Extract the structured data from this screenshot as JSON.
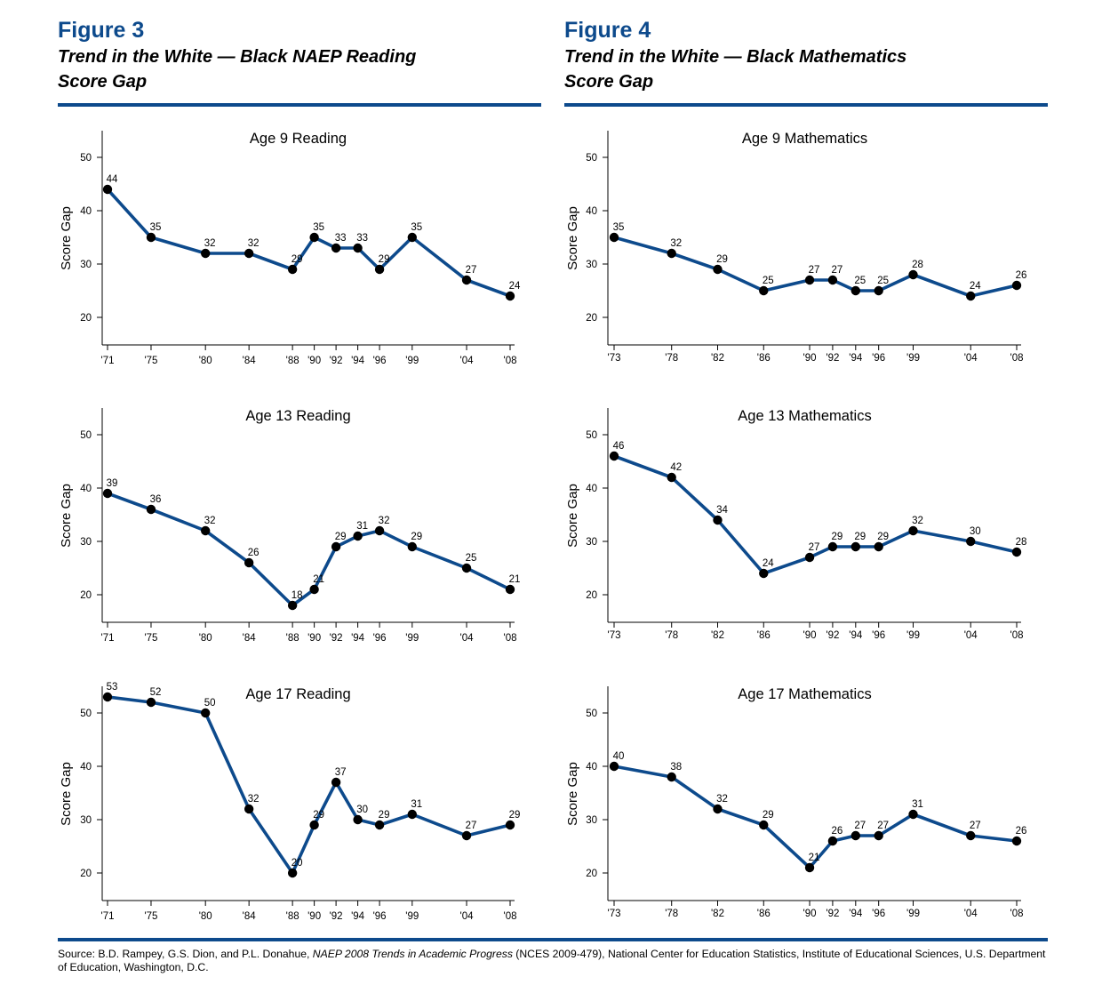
{
  "figures": [
    {
      "number": "Figure 3",
      "title_line1": "Trend in the White — Black NAEP Reading",
      "title_line2": "Score Gap"
    },
    {
      "number": "Figure 4",
      "title_line1": "Trend in the White — Black Mathematics",
      "title_line2": "Score Gap"
    }
  ],
  "source": {
    "prefix": "Source: B.D. Rampey, G.S. Dion, and P.L. Donahue, ",
    "italic": "NAEP 2008 Trends in Academic Progress",
    "suffix": " (NCES 2009-479), National Center for Education Statistics, Institute of Educational Sciences, U.S. Department of Education, Washington, D.C."
  },
  "colors": {
    "brand": "#0d4a8c",
    "line": "#0d4a8c",
    "marker": "#000000"
  },
  "chart_data": [
    {
      "type": "line",
      "title": "Age 9 Reading",
      "ylabel": "Score Gap",
      "ylim": [
        20,
        50
      ],
      "yticks": [
        20,
        30,
        40,
        50
      ],
      "x": [
        1971,
        1975,
        1980,
        1984,
        1988,
        1990,
        1992,
        1994,
        1996,
        1999,
        2004,
        2008
      ],
      "xticklabels": [
        "'71",
        "'75",
        "'80",
        "'84",
        "'88",
        "'90",
        "'92",
        "'94",
        "'96",
        "'99",
        "'04",
        "'08"
      ],
      "values": [
        44,
        35,
        32,
        32,
        29,
        35,
        33,
        33,
        29,
        35,
        27,
        24
      ]
    },
    {
      "type": "line",
      "title": "Age 13 Reading",
      "ylabel": "Score Gap",
      "ylim": [
        20,
        50
      ],
      "yticks": [
        20,
        30,
        40,
        50
      ],
      "x": [
        1971,
        1975,
        1980,
        1984,
        1988,
        1990,
        1992,
        1994,
        1996,
        1999,
        2004,
        2008
      ],
      "xticklabels": [
        "'71",
        "'75",
        "'80",
        "'84",
        "'88",
        "'90",
        "'92",
        "'94",
        "'96",
        "'99",
        "'04",
        "'08"
      ],
      "values": [
        39,
        36,
        32,
        26,
        18,
        21,
        29,
        31,
        32,
        29,
        25,
        21
      ]
    },
    {
      "type": "line",
      "title": "Age 17 Reading",
      "ylabel": "Score Gap",
      "ylim": [
        20,
        50
      ],
      "yticks": [
        20,
        30,
        40,
        50
      ],
      "x": [
        1971,
        1975,
        1980,
        1984,
        1988,
        1990,
        1992,
        1994,
        1996,
        1999,
        2004,
        2008
      ],
      "xticklabels": [
        "'71",
        "'75",
        "'80",
        "'84",
        "'88",
        "'90",
        "'92",
        "'94",
        "'96",
        "'99",
        "'04",
        "'08"
      ],
      "values": [
        53,
        52,
        50,
        32,
        20,
        29,
        37,
        30,
        29,
        31,
        27,
        29
      ]
    },
    {
      "type": "line",
      "title": "Age 9 Mathematics",
      "ylabel": "Score Gap",
      "ylim": [
        20,
        50
      ],
      "yticks": [
        20,
        30,
        40,
        50
      ],
      "x": [
        1973,
        1978,
        1982,
        1986,
        1990,
        1992,
        1994,
        1996,
        1999,
        2004,
        2008
      ],
      "xticklabels": [
        "'73",
        "'78",
        "'82",
        "'86",
        "'90",
        "'92",
        "'94",
        "'96",
        "'99",
        "'04",
        "'08"
      ],
      "values": [
        35,
        32,
        29,
        25,
        27,
        27,
        25,
        25,
        28,
        24,
        26
      ]
    },
    {
      "type": "line",
      "title": "Age 13 Mathematics",
      "ylabel": "Score Gap",
      "ylim": [
        20,
        50
      ],
      "yticks": [
        20,
        30,
        40,
        50
      ],
      "x": [
        1973,
        1978,
        1982,
        1986,
        1990,
        1992,
        1994,
        1996,
        1999,
        2004,
        2008
      ],
      "xticklabels": [
        "'73",
        "'78",
        "'82",
        "'86",
        "'90",
        "'92",
        "'94",
        "'96",
        "'99",
        "'04",
        "'08"
      ],
      "values": [
        46,
        42,
        34,
        24,
        27,
        29,
        29,
        29,
        32,
        30,
        28
      ]
    },
    {
      "type": "line",
      "title": "Age 17 Mathematics",
      "ylabel": "Score Gap",
      "ylim": [
        20,
        50
      ],
      "yticks": [
        20,
        30,
        40,
        50
      ],
      "x": [
        1973,
        1978,
        1982,
        1986,
        1990,
        1992,
        1994,
        1996,
        1999,
        2004,
        2008
      ],
      "xticklabels": [
        "'73",
        "'78",
        "'82",
        "'86",
        "'90",
        "'92",
        "'94",
        "'96",
        "'99",
        "'04",
        "'08"
      ],
      "values": [
        40,
        38,
        32,
        29,
        21,
        26,
        27,
        27,
        31,
        27,
        26
      ]
    }
  ]
}
